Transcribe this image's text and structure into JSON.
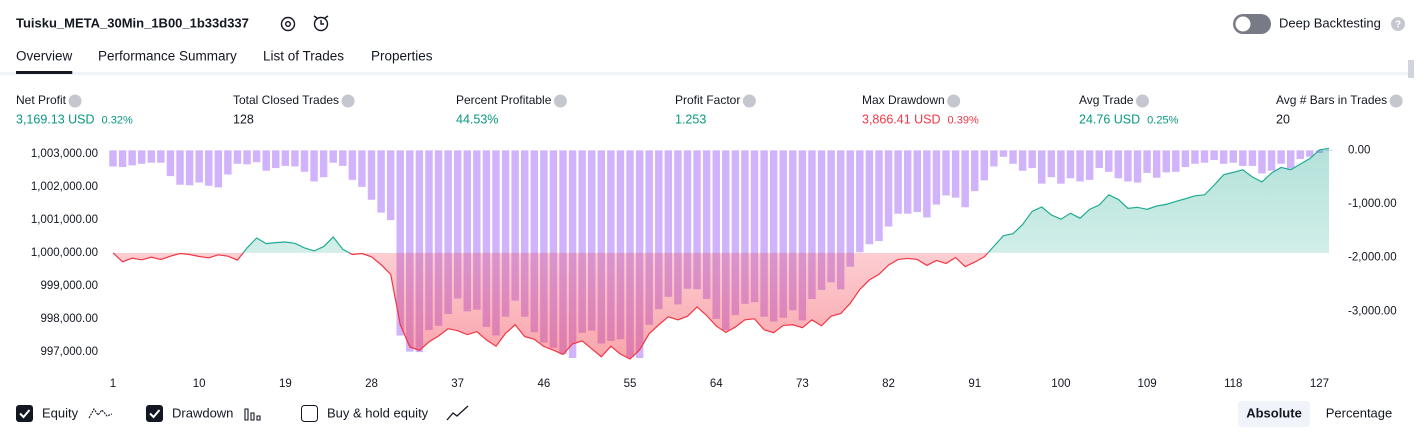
{
  "header": {
    "title": "Tuisku_META_30Min_1B00_1b33d337",
    "deep_backtesting": "Deep Backtesting"
  },
  "tabs": {
    "items": [
      "Overview",
      "Performance Summary",
      "List of Trades",
      "Properties"
    ],
    "active": 0
  },
  "metrics": [
    {
      "label": "Net Profit",
      "value": "3,169.13 USD",
      "percent": "0.32%",
      "color": "#089981"
    },
    {
      "label": "Total Closed Trades",
      "value": "128",
      "color": "#131722"
    },
    {
      "label": "Percent Profitable",
      "value": "44.53%",
      "color": "#089981"
    },
    {
      "label": "Profit Factor",
      "value": "1.253",
      "color": "#089981"
    },
    {
      "label": "Max Drawdown",
      "value": "3,866.41 USD",
      "percent": "0.39%",
      "color": "#f23645"
    },
    {
      "label": "Avg Trade",
      "value": "24.76 USD",
      "percent": "0.25%",
      "color": "#089981"
    },
    {
      "label": "Avg # Bars in Trades",
      "value": "20",
      "color": "#131722"
    }
  ],
  "chart_data": {
    "type": "combo",
    "x": [
      1,
      2,
      3,
      4,
      5,
      6,
      7,
      8,
      9,
      10,
      11,
      12,
      13,
      14,
      15,
      16,
      17,
      18,
      19,
      20,
      21,
      22,
      23,
      24,
      25,
      26,
      27,
      28,
      29,
      30,
      31,
      32,
      33,
      34,
      35,
      36,
      37,
      38,
      39,
      40,
      41,
      42,
      43,
      44,
      45,
      46,
      47,
      48,
      49,
      50,
      51,
      52,
      53,
      54,
      55,
      56,
      57,
      58,
      59,
      60,
      61,
      62,
      63,
      64,
      65,
      66,
      67,
      68,
      69,
      70,
      71,
      72,
      73,
      74,
      75,
      76,
      77,
      78,
      79,
      80,
      81,
      82,
      83,
      84,
      85,
      86,
      87,
      88,
      89,
      90,
      91,
      92,
      93,
      94,
      95,
      96,
      97,
      98,
      99,
      100,
      101,
      102,
      103,
      104,
      105,
      106,
      107,
      108,
      109,
      110,
      111,
      112,
      113,
      114,
      115,
      116,
      117,
      118,
      119,
      120,
      121,
      122,
      123,
      124,
      125,
      126,
      127,
      128
    ],
    "xlim": [
      1,
      128
    ],
    "xticks": [
      1,
      10,
      19,
      28,
      37,
      46,
      55,
      64,
      73,
      82,
      91,
      100,
      109,
      118,
      127
    ],
    "ylim": [
      996600,
      1003270
    ],
    "yticks": [
      {
        "value": 1003000,
        "label": "1,003,000.00"
      },
      {
        "value": 1002000,
        "label": "1,002,000.00"
      },
      {
        "value": 1001000,
        "label": "1,001,000.00"
      },
      {
        "value": 1000000,
        "label": "1,000,000.00"
      },
      {
        "value": 999000,
        "label": "999,000.00"
      },
      {
        "value": 998000,
        "label": "998,000.00"
      },
      {
        "value": 997000,
        "label": "997,000.00"
      }
    ],
    "y2lim": [
      -4000,
      100
    ],
    "y2ticks": [
      {
        "value": 0,
        "label": "0.00"
      },
      {
        "value": -1000,
        "label": "-1,000.00"
      },
      {
        "value": -2000,
        "label": "-2,000.00"
      },
      {
        "value": -3000,
        "label": "-3,000.00"
      }
    ],
    "series": [
      {
        "name": "Equity",
        "type": "line",
        "color": "#22ab94",
        "negative_color": "#f23645",
        "values": [
          1000000,
          999730,
          999840,
          999790,
          999870,
          999800,
          999900,
          999980,
          999950,
          999890,
          999850,
          999940,
          999900,
          999780,
          1000150,
          1000450,
          1000280,
          1000310,
          1000330,
          1000290,
          1000150,
          1000060,
          1000190,
          1000480,
          1000110,
          999950,
          999980,
          999880,
          999640,
          999350,
          997820,
          997150,
          997040,
          997300,
          997480,
          997700,
          997640,
          997520,
          997610,
          997360,
          997170,
          997560,
          997820,
          997460,
          997380,
          997160,
          997050,
          996920,
          997240,
          997330,
          997090,
          996850,
          997170,
          996930,
          996780,
          997060,
          997550,
          997820,
          998060,
          997970,
          998080,
          998360,
          998100,
          997780,
          997590,
          997750,
          997970,
          998000,
          997670,
          997580,
          997800,
          997820,
          997730,
          997970,
          997790,
          998080,
          998160,
          998470,
          998890,
          999180,
          999350,
          999630,
          999800,
          999830,
          999800,
          999620,
          999770,
          999680,
          999860,
          999580,
          999720,
          999880,
          1000200,
          1000520,
          1000580,
          1000860,
          1001260,
          1001390,
          1001150,
          1001020,
          1001200,
          1001050,
          1001320,
          1001450,
          1001760,
          1001620,
          1001350,
          1001380,
          1001320,
          1001420,
          1001470,
          1001560,
          1001640,
          1001730,
          1001760,
          1002050,
          1002370,
          1002440,
          1002520,
          1002300,
          1002150,
          1002420,
          1002590,
          1002520,
          1002690,
          1002860,
          1003120,
          1003169
        ]
      },
      {
        "name": "Drawdown",
        "type": "bar",
        "axis": "y2",
        "color": "#d1b3fc",
        "values": [
          -300,
          -310,
          -280,
          -250,
          -230,
          -230,
          -480,
          -640,
          -650,
          -600,
          -660,
          -690,
          -450,
          -250,
          -260,
          -220,
          -380,
          -330,
          -290,
          -300,
          -400,
          -580,
          -500,
          -230,
          -290,
          -550,
          -680,
          -920,
          -1160,
          -1300,
          -3450,
          -3750,
          -3760,
          -3350,
          -3270,
          -3050,
          -2760,
          -3000,
          -2970,
          -3290,
          -3450,
          -3100,
          -2800,
          -3100,
          -3390,
          -3580,
          -3680,
          -3800,
          -3870,
          -3400,
          -3360,
          -3600,
          -3550,
          -3520,
          -3860,
          -3870,
          -3250,
          -2960,
          -2730,
          -2870,
          -2580,
          -2590,
          -2770,
          -3140,
          -3350,
          -3070,
          -2860,
          -2830,
          -3100,
          -3190,
          -3120,
          -2980,
          -3170,
          -2770,
          -2600,
          -2460,
          -2590,
          -2170,
          -1900,
          -1750,
          -1690,
          -1420,
          -1180,
          -1180,
          -1150,
          -1250,
          -1010,
          -840,
          -880,
          -1060,
          -760,
          -560,
          -300,
          -120,
          -250,
          -380,
          -330,
          -620,
          -500,
          -620,
          -520,
          -580,
          -550,
          -330,
          -400,
          -520,
          -580,
          -600,
          -420,
          -510,
          -410,
          -400,
          -310,
          -250,
          -230,
          -180,
          -250,
          -230,
          -290,
          -290,
          -430,
          -380,
          -250,
          -340,
          -160,
          -120,
          -50,
          -10
        ]
      }
    ]
  },
  "footer": {
    "extra_toggle": "Buy & hold equity",
    "buttons": [
      "Absolute",
      "Percentage"
    ],
    "active_button": 0
  }
}
